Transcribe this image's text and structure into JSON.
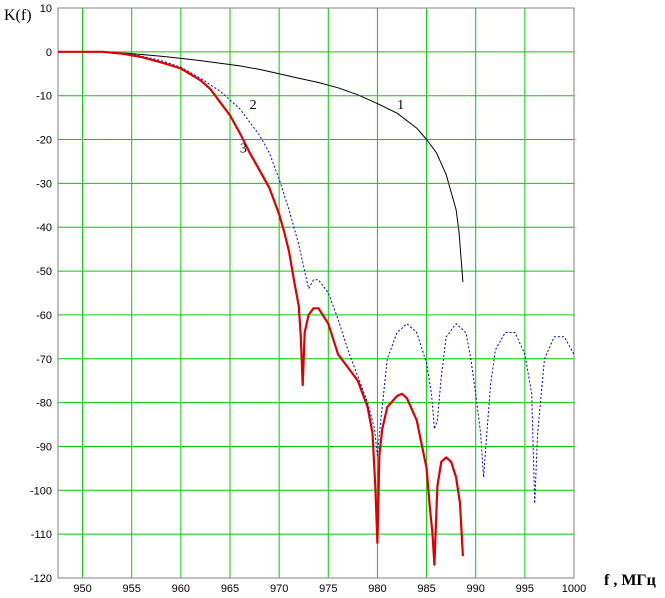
{
  "chart_data": {
    "type": "line",
    "ylabel": "K(f)",
    "xlabel": "f , МГц",
    "xlim": [
      947.5,
      1000
    ],
    "ylim": [
      -120,
      10
    ],
    "grid": true,
    "x_ticks": [
      950,
      955,
      960,
      965,
      970,
      975,
      980,
      985,
      990,
      995,
      1000
    ],
    "y_ticks": [
      10,
      0,
      -10,
      -20,
      -30,
      -40,
      -50,
      -60,
      -70,
      -80,
      -90,
      -100,
      -110,
      -120
    ],
    "colors": {
      "grid": "#00cc00",
      "curve1": "#000000",
      "curve2": "#0000cc",
      "curve3": "#dd0000"
    },
    "series": [
      {
        "name": "1",
        "style": "solid-thin",
        "x": [
          947.5,
          952,
          955,
          958,
          960,
          962,
          964,
          966,
          968,
          970,
          972,
          974,
          976,
          978,
          980,
          982,
          984,
          985,
          986,
          987,
          988,
          988.3,
          988.7
        ],
        "y": [
          0,
          0,
          -0.4,
          -1,
          -1.5,
          -2,
          -2.6,
          -3.2,
          -4,
          -5,
          -6,
          -7,
          -8.2,
          -9.8,
          -11.8,
          -14,
          -17.4,
          -20,
          -23,
          -28,
          -36,
          -41,
          -52.5
        ]
      },
      {
        "name": "2",
        "style": "dotted",
        "x": [
          947.5,
          952,
          955,
          958,
          960,
          962,
          964,
          966,
          968,
          969,
          970,
          971,
          972,
          972.6,
          973,
          973.5,
          974,
          975,
          976,
          977,
          978,
          979,
          979.7,
          980,
          980.3,
          981,
          982,
          983,
          984,
          985,
          985.5,
          985.8,
          986.1,
          986.5,
          987,
          988,
          989,
          989.5,
          990,
          990.5,
          990.8,
          991.1,
          991.5,
          992,
          993,
          994,
          995,
          995.7,
          996,
          996.3,
          997,
          998,
          999,
          1000
        ],
        "y": [
          0,
          0,
          -0.5,
          -2,
          -3.5,
          -6,
          -9,
          -13,
          -19,
          -23,
          -29,
          -36,
          -44,
          -50,
          -54,
          -52,
          -52,
          -55,
          -61,
          -68,
          -74,
          -80,
          -86,
          -92,
          -85,
          -70,
          -64,
          -62,
          -64,
          -71,
          -78,
          -86,
          -84,
          -74,
          -65,
          -62,
          -64,
          -70,
          -78,
          -87,
          -97,
          -88,
          -76,
          -68,
          -64,
          -64,
          -69,
          -78,
          -103,
          -87,
          -70,
          -65,
          -65,
          -69
        ]
      },
      {
        "name": "3",
        "style": "solid-thick",
        "x": [
          947.5,
          952,
          954,
          956,
          958,
          960,
          962,
          963,
          964,
          965,
          966,
          967,
          968,
          969,
          970,
          970.5,
          971,
          971.5,
          972,
          972.2,
          972.4,
          972.6,
          973,
          973.5,
          974,
          975,
          976,
          977,
          978,
          979,
          979.5,
          979.8,
          980,
          980.2,
          980.5,
          981,
          982,
          982.5,
          983,
          984,
          985,
          985.3,
          985.6,
          985.8,
          986.1,
          986.5,
          987,
          987.5,
          988,
          988.4,
          988.7
        ],
        "y": [
          0,
          0,
          -0.4,
          -1.2,
          -2.4,
          -3.8,
          -6.5,
          -8.5,
          -11.5,
          -14.5,
          -18.5,
          -23,
          -27,
          -31,
          -37,
          -41,
          -45.5,
          -52,
          -58,
          -65,
          -76,
          -64,
          -60,
          -58.5,
          -58.5,
          -62,
          -69,
          -72,
          -75,
          -81,
          -87,
          -100,
          -112,
          -92,
          -86,
          -81,
          -78.5,
          -78,
          -79,
          -84,
          -95,
          -103,
          -110,
          -117,
          -99,
          -93.5,
          -92.5,
          -93.5,
          -97,
          -103,
          -115
        ]
      }
    ],
    "annotations": [
      {
        "text": "1",
        "x": 982,
        "y": -13
      },
      {
        "text": "2",
        "x": 967,
        "y": -13
      },
      {
        "text": "3",
        "x": 966,
        "y": -23
      }
    ]
  }
}
